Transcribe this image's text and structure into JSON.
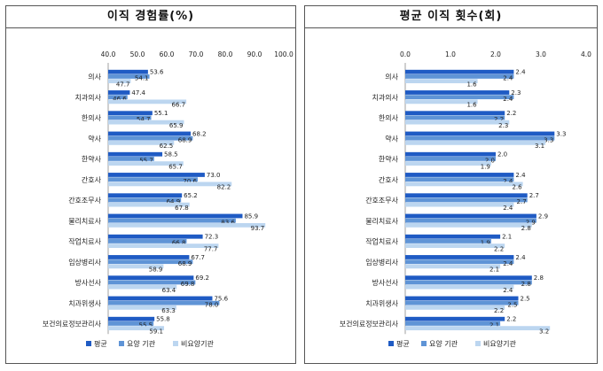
{
  "colors": {
    "평균": "#1f5bc4",
    "요양 기관": "#5f94d6",
    "비요양기관": "#bcd6f0"
  },
  "legend": [
    "평균",
    "요양 기관",
    "비요양기관"
  ],
  "chart_data": [
    {
      "type": "bar",
      "orientation": "horizontal",
      "title": "이직 경험률(%)",
      "xlim": [
        40.0,
        100.0
      ],
      "x_ticks": [
        "40.0",
        "50.0",
        "60.0",
        "70.0",
        "80.0",
        "90.0",
        "100.0"
      ],
      "categories": [
        "의사",
        "치과의사",
        "한의사",
        "약사",
        "한약사",
        "간호사",
        "간호조무사",
        "물리치료사",
        "작업치료사",
        "임상병리사",
        "방사선사",
        "치과위생사",
        "보건의료정보관리사"
      ],
      "series": [
        {
          "name": "평균",
          "values": [
            53.6,
            47.4,
            55.1,
            68.2,
            58.5,
            73.0,
            65.2,
            85.9,
            72.3,
            67.7,
            69.2,
            75.6,
            55.8
          ],
          "labels": [
            "53.6",
            "47.4",
            "55.1",
            "68.2",
            "58.5",
            "73.0",
            "65.2",
            "85.9",
            "72.3",
            "67.7",
            "69.2",
            "75.6",
            "55.8"
          ]
        },
        {
          "name": "요양 기관",
          "values": [
            54.1,
            46.6,
            54.7,
            68.9,
            55.7,
            70.6,
            64.9,
            83.6,
            66.8,
            68.9,
            69.8,
            78.0,
            55.5
          ],
          "labels": [
            "54.1",
            "46.6",
            "54.7",
            "68.9",
            "55.7",
            "70.6",
            "64.9",
            "83.6",
            "66.8",
            "68.9",
            "69.8",
            "78.0",
            "55.5"
          ]
        },
        {
          "name": "비요양기관",
          "values": [
            47.7,
            66.7,
            65.9,
            62.5,
            65.7,
            82.2,
            67.8,
            93.7,
            77.7,
            58.9,
            63.4,
            63.3,
            59.1
          ],
          "labels": [
            "47.7",
            "66.7",
            "65.9",
            "62.5",
            "65.7",
            "82.2",
            "67.8",
            "93.7",
            "77.7",
            "58.9",
            "63.4",
            "63.3",
            "59.1"
          ]
        }
      ],
      "legend": "bottom"
    },
    {
      "type": "bar",
      "orientation": "horizontal",
      "title": "평균 이직 횟수(회)",
      "xlim": [
        0.0,
        4.0
      ],
      "x_ticks": [
        "0.0",
        "1.0",
        "2.0",
        "3.0",
        "4.0"
      ],
      "categories": [
        "의사",
        "치과의사",
        "한의사",
        "약사",
        "한약사",
        "간호사",
        "간호조무사",
        "물리치료사",
        "작업치료사",
        "임상병리사",
        "방사선사",
        "치과위생사",
        "보건의료정보관리사"
      ],
      "series": [
        {
          "name": "평균",
          "values": [
            2.4,
            2.3,
            2.2,
            3.3,
            2.0,
            2.4,
            2.7,
            2.9,
            2.1,
            2.4,
            2.8,
            2.5,
            2.2
          ],
          "labels": [
            "2.4",
            "2.3",
            "2.2",
            "3.3",
            "2.0",
            "2.4",
            "2.7",
            "2.9",
            "2.1",
            "2.4",
            "2.8",
            "2.5",
            "2.2"
          ]
        },
        {
          "name": "요양 기관",
          "values": [
            2.4,
            2.4,
            2.2,
            3.3,
            2.0,
            2.4,
            2.7,
            2.9,
            1.9,
            2.4,
            2.8,
            2.5,
            2.1
          ],
          "labels": [
            "2.4",
            "2.4",
            "2.2",
            "3.3",
            "2.0",
            "2.4",
            "2.7",
            "2.9",
            "1.9",
            "2.4",
            "2.8",
            "2.5",
            "2.1"
          ]
        },
        {
          "name": "비요양기관",
          "values": [
            1.6,
            1.6,
            2.3,
            3.1,
            1.9,
            2.6,
            2.4,
            2.8,
            2.2,
            2.1,
            2.4,
            2.2,
            3.2
          ],
          "labels": [
            "1.6",
            "1.6",
            "2.3",
            "3.1",
            "1.9",
            "2.6",
            "2.4",
            "2.8",
            "2.2",
            "2.1",
            "2.4",
            "2.2",
            "3.2"
          ]
        }
      ],
      "legend": "bottom"
    }
  ]
}
